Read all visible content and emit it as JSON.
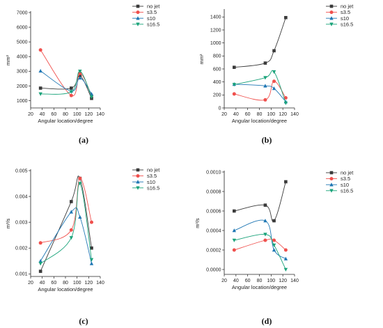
{
  "legend": [
    "no jet",
    "s3.5",
    "s10",
    "s16.5"
  ],
  "colors": [
    "#3a3a3a",
    "#f0504d",
    "#1f77b4",
    "#1aa37a"
  ],
  "chart_data": [
    {
      "type": "line",
      "panel_label": "(a)",
      "xlabel": "Angular location/degree",
      "ylabel": "mm²",
      "xlim": [
        20,
        140
      ],
      "ylim": [
        500,
        7000
      ],
      "xticks": [
        20,
        40,
        60,
        80,
        100,
        120,
        140
      ],
      "yticks": [
        1000,
        2000,
        3000,
        4000,
        5000,
        6000,
        7000
      ],
      "x": [
        37,
        90,
        105,
        125
      ],
      "series": [
        {
          "name": "no jet",
          "values": [
            1850,
            1850,
            2700,
            1150
          ]
        },
        {
          "name": "s3.5",
          "values": [
            4450,
            1350,
            2850,
            1350
          ]
        },
        {
          "name": "s10",
          "values": [
            3020,
            1650,
            2550,
            1450
          ]
        },
        {
          "name": "s16.5",
          "values": [
            1450,
            1600,
            3000,
            1250
          ]
        }
      ]
    },
    {
      "type": "line",
      "panel_label": "(b)",
      "xlabel": "Angular location/degree",
      "ylabel": "mm²",
      "xlim": [
        20,
        140
      ],
      "ylim": [
        0,
        1500
      ],
      "xticks": [
        20,
        40,
        60,
        80,
        100,
        120,
        140
      ],
      "yticks": [
        0,
        200,
        400,
        600,
        800,
        1000,
        1200,
        1400
      ],
      "x": [
        37,
        90,
        105,
        125
      ],
      "series": [
        {
          "name": "no jet",
          "values": [
            625,
            690,
            880,
            1390
          ]
        },
        {
          "name": "s3.5",
          "values": [
            215,
            125,
            410,
            155
          ]
        },
        {
          "name": "s10",
          "values": [
            365,
            340,
            300,
            95
          ]
        },
        {
          "name": "s16.5",
          "values": [
            360,
            465,
            555,
            75
          ]
        }
      ]
    },
    {
      "type": "line",
      "panel_label": "(c)",
      "xlabel": "Angular location/degree",
      "ylabel": "m³/s",
      "xlim": [
        20,
        140
      ],
      "ylim": [
        0.0009,
        0.005
      ],
      "xticks": [
        20,
        40,
        60,
        80,
        100,
        120,
        140
      ],
      "yticks": [
        0.001,
        0.002,
        0.003,
        0.004,
        0.005
      ],
      "x": [
        37,
        90,
        105,
        125
      ],
      "series": [
        {
          "name": "no jet",
          "values": [
            0.0011,
            0.0038,
            0.0047,
            0.002
          ]
        },
        {
          "name": "s3.5",
          "values": [
            0.0022,
            0.0027,
            0.0047,
            0.003
          ]
        },
        {
          "name": "s10",
          "values": [
            0.0015,
            0.0034,
            0.0032,
            0.0014
          ]
        },
        {
          "name": "s16.5",
          "values": [
            0.0014,
            0.0024,
            0.0045,
            0.00155
          ]
        }
      ]
    },
    {
      "type": "line",
      "panel_label": "(d)",
      "xlabel": "Angular location/degree",
      "ylabel": "m³/s",
      "xlim": [
        20,
        140
      ],
      "ylim": [
        -5e-05,
        0.001
      ],
      "xticks": [
        20,
        40,
        60,
        80,
        100,
        120,
        140
      ],
      "yticks": [
        0.0,
        0.0002,
        0.0004,
        0.0006,
        0.0008,
        0.001
      ],
      "ytick_labels": [
        "0.0000",
        "0.0002",
        "0.0004",
        "0.0006",
        "0.0008",
        "0.0010"
      ],
      "x": [
        37,
        90,
        105,
        125
      ],
      "series": [
        {
          "name": "no jet",
          "values": [
            0.0006,
            0.00066,
            0.0005,
            0.0009
          ]
        },
        {
          "name": "s3.5",
          "values": [
            0.0002,
            0.0003,
            0.0003,
            0.0002
          ]
        },
        {
          "name": "s10",
          "values": [
            0.0004,
            0.0005,
            0.0002,
            0.00011
          ]
        },
        {
          "name": "s16.5",
          "values": [
            0.0003,
            0.00036,
            0.00025,
            0.0
          ]
        }
      ]
    }
  ]
}
